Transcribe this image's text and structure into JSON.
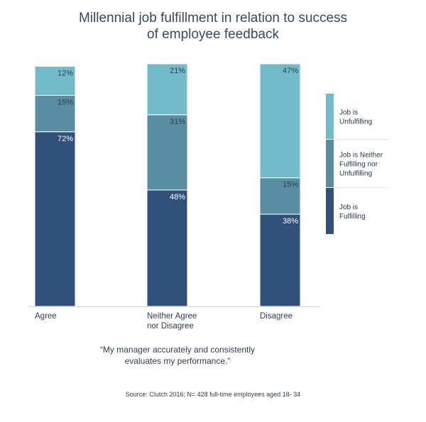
{
  "chart_data": {
    "type": "bar",
    "stacked": true,
    "title_lines": [
      "Millennial job fulfillment in relation to success",
      "of employee feedback"
    ],
    "categories": [
      [
        "Agree"
      ],
      [
        "Neither Agree",
        "nor Disagree"
      ],
      [
        "Disagree"
      ]
    ],
    "series": [
      {
        "name": "Job is Fulfilling",
        "name_lines": [
          "Job is",
          "Fulfilling"
        ],
        "color": "#30507a",
        "values": [
          72,
          48,
          38
        ],
        "labels": [
          "72%",
          "48%",
          "38%"
        ]
      },
      {
        "name": "Job is Neither Fulfilling nor Unfulfilling",
        "name_lines": [
          "Job is Neither",
          "Fulfilling nor",
          "Unfulfilling"
        ],
        "color": "#5a8ca2",
        "values": [
          15,
          31,
          15
        ],
        "labels": [
          "15%",
          "31%",
          "15%"
        ]
      },
      {
        "name": "Job is Unfulfilling",
        "name_lines": [
          "Job is",
          "Unfulfilling"
        ],
        "color": "#73bacb",
        "values": [
          12,
          21,
          47
        ],
        "labels": [
          "12%",
          "21%",
          "47%"
        ]
      }
    ],
    "ylim": [
      0,
      100
    ],
    "grid": false,
    "legend_position": "right",
    "quote_lines": [
      "“My manager accurately and consistently",
      "evaluates my performance.”"
    ],
    "source": "Source:  Clutch 2016; N= 428 full-time employees aged 18- 34"
  }
}
